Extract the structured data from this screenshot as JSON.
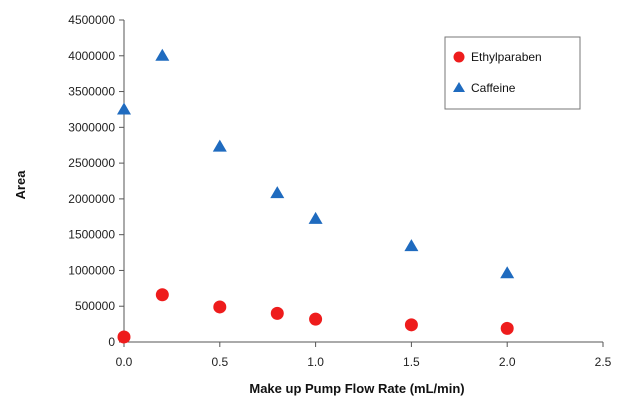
{
  "chart_data": {
    "type": "scatter",
    "title": "",
    "xlabel": "Make up Pump Flow Rate (mL/min)",
    "ylabel": "Area",
    "xlim": [
      0,
      2.5
    ],
    "ylim": [
      0,
      4500000
    ],
    "xticks": [
      "0.0",
      "0.5",
      "1.0",
      "1.5",
      "2.0",
      "2.5"
    ],
    "yticks": [
      "0",
      "500000",
      "1000000",
      "1500000",
      "2000000",
      "2500000",
      "3000000",
      "3500000",
      "4000000",
      "4500000"
    ],
    "grid": false,
    "legend_position": "top-right",
    "series": [
      {
        "name": "Ethylparaben",
        "marker": "circle",
        "color": "#ee1c1c",
        "x": [
          0.0,
          0.2,
          0.5,
          0.8,
          1.0,
          1.5,
          2.0
        ],
        "y": [
          70000,
          660000,
          490000,
          400000,
          320000,
          240000,
          190000
        ]
      },
      {
        "name": "Caffeine",
        "marker": "triangle",
        "color": "#1f6bbf",
        "x": [
          0.0,
          0.2,
          0.5,
          0.8,
          1.0,
          1.5,
          2.0
        ],
        "y": [
          3250000,
          4000000,
          2730000,
          2080000,
          1720000,
          1340000,
          960000
        ]
      }
    ]
  }
}
